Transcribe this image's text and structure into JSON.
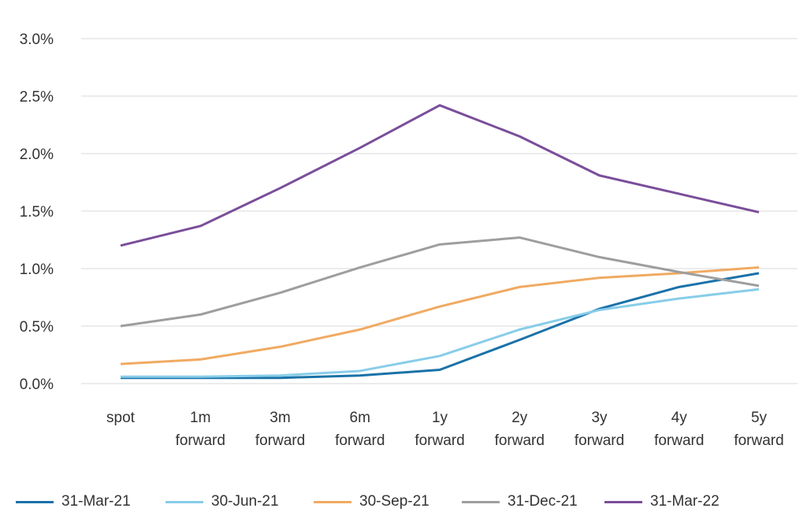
{
  "chart_data": {
    "type": "line",
    "categories": [
      [
        "spot"
      ],
      [
        "1m",
        "forward"
      ],
      [
        "3m",
        "forward"
      ],
      [
        "6m",
        "forward"
      ],
      [
        "1y",
        "forward"
      ],
      [
        "2y",
        "forward"
      ],
      [
        "3y",
        "forward"
      ],
      [
        "4y",
        "forward"
      ],
      [
        "5y",
        "forward"
      ]
    ],
    "y_ticks": [
      "0.0%",
      "0.5%",
      "1.0%",
      "1.5%",
      "2.0%",
      "2.5%",
      "3.0%"
    ],
    "ylim": [
      0,
      3.0
    ],
    "y_unit": "%",
    "grid": "horizontal",
    "legend_position": "bottom",
    "series": [
      {
        "name": "31-Mar-21",
        "color": "#1a72a8",
        "values": [
          0.05,
          0.05,
          0.05,
          0.07,
          0.12,
          0.38,
          0.65,
          0.84,
          0.96
        ]
      },
      {
        "name": "30-Jun-21",
        "color": "#88cde9",
        "values": [
          0.06,
          0.06,
          0.07,
          0.11,
          0.24,
          0.47,
          0.64,
          0.74,
          0.82
        ]
      },
      {
        "name": "30-Sep-21",
        "color": "#f0aa62",
        "values": [
          0.17,
          0.21,
          0.32,
          0.47,
          0.67,
          0.84,
          0.92,
          0.96,
          1.01
        ]
      },
      {
        "name": "31-Dec-21",
        "color": "#9e9e9e",
        "values": [
          0.5,
          0.6,
          0.79,
          1.01,
          1.21,
          1.27,
          1.1,
          0.97,
          0.85
        ]
      },
      {
        "name": "31-Mar-22",
        "color": "#7a4e9a",
        "values": [
          1.2,
          1.37,
          1.7,
          2.05,
          2.42,
          2.15,
          1.81,
          1.65,
          1.49
        ]
      }
    ]
  }
}
